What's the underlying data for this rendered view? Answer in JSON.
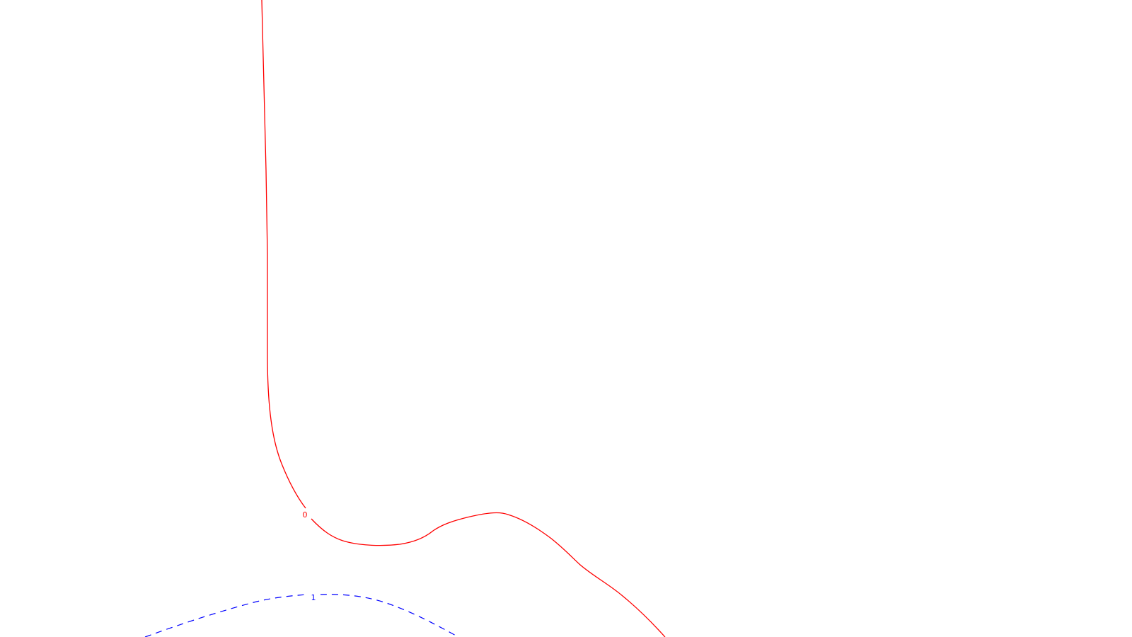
{
  "colors": {
    "background": "#ffffff",
    "contour_0": "#ff0000",
    "contour_1": "#0000ff"
  },
  "contours": {
    "label_0": "0",
    "label_1": "1"
  }
}
